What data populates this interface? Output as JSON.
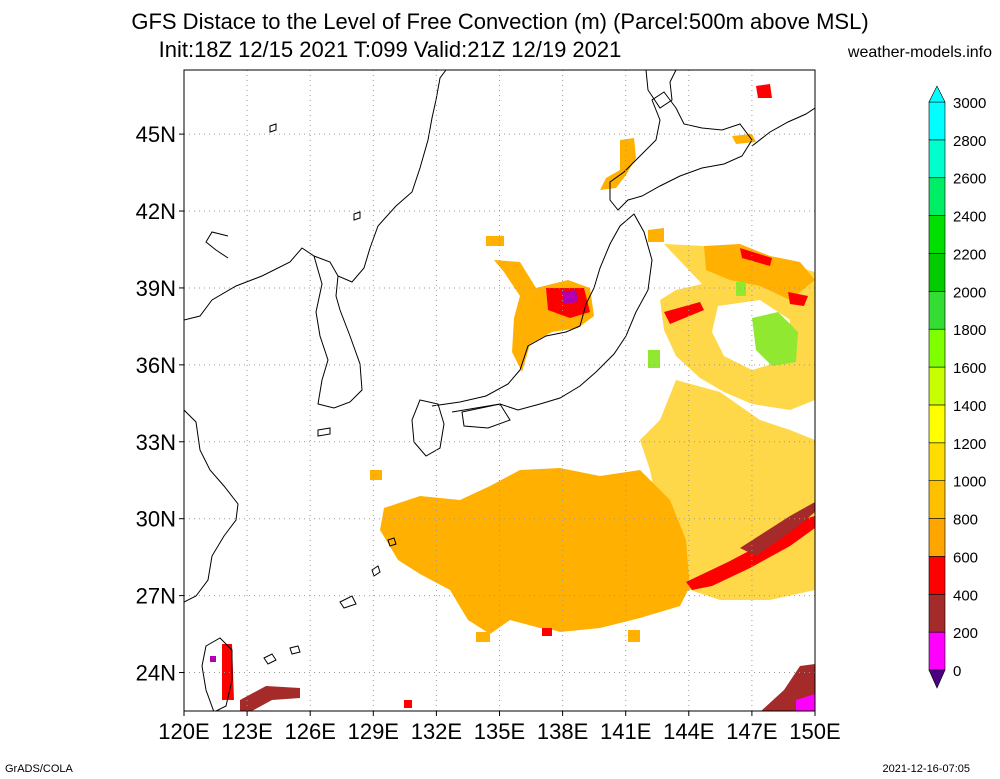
{
  "title_line1": "GFS Distace to the Level of Free Convection (m) (Parcel:500m above MSL)",
  "title_line2": "Init:18Z 12/15 2021 T:099 Valid:21Z 12/19 2021",
  "site": "weather-models.info",
  "footer_left": "GrADS/COLA",
  "footer_right": "2021-12-16-07:05",
  "map": {
    "lon_range": [
      120,
      150
    ],
    "lat_range": [
      22.5,
      47.5
    ],
    "lon_ticks": [
      "120E",
      "123E",
      "126E",
      "129E",
      "132E",
      "135E",
      "138E",
      "141E",
      "144E",
      "147E",
      "150E"
    ],
    "lon_values": [
      120,
      123,
      126,
      129,
      132,
      135,
      138,
      141,
      144,
      147,
      150
    ],
    "lat_ticks": [
      "24N",
      "27N",
      "30N",
      "33N",
      "36N",
      "39N",
      "42N",
      "45N"
    ],
    "lat_values": [
      24,
      27,
      30,
      33,
      36,
      39,
      42,
      45
    ],
    "grid": "dotted"
  },
  "colorbar": {
    "levels": [
      "0",
      "200",
      "400",
      "600",
      "800",
      "1000",
      "1200",
      "1400",
      "1600",
      "1800",
      "2000",
      "2200",
      "2400",
      "2600",
      "2800",
      "3000"
    ],
    "colors": [
      "#4b0082",
      "#ff00ff",
      "#a52a2a",
      "#ff0000",
      "#ffa500",
      "#ffc000",
      "#ffdd00",
      "#ffff00",
      "#c8ff00",
      "#80ff00",
      "#33dd33",
      "#00cc00",
      "#00e000",
      "#00ee66",
      "#00ffcc",
      "#00ffff"
    ]
  },
  "colors": {
    "orange": "#ffb000",
    "yellow": "#ffd84a",
    "red": "#ff0000",
    "brown": "#a52a2a",
    "magenta": "#ff00ff",
    "green": "#90e830"
  }
}
